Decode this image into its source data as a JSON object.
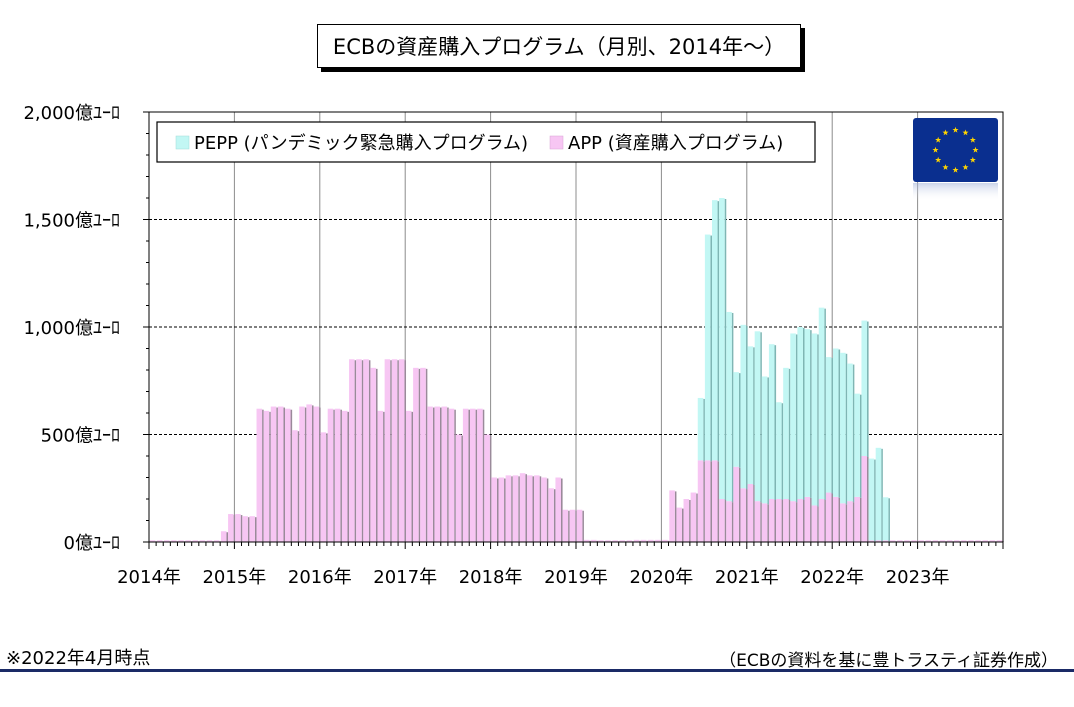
{
  "title": "ECBの資産購入プログラム（月別、2014年～）",
  "footnote": "※2022年4月時点",
  "source": "（ECBの資料を基に豊トラスティ証券作成）",
  "chart_data": {
    "type": "bar",
    "stacked": true,
    "title": "ECBの資産購入プログラム（月別、2014年～）",
    "ylim": [
      0,
      2000
    ],
    "yticks": [
      0,
      500,
      1000,
      1500,
      2000
    ],
    "ytick_labels": [
      "0億ﾕｰﾛ",
      "500億ﾕｰﾛ",
      "1,000億ﾕｰﾛ",
      "1,500億ﾕｰﾛ",
      "2,000億ﾕｰﾛ"
    ],
    "xtick_labels": [
      "2014年",
      "2015年",
      "2016年",
      "2017年",
      "2018年",
      "2019年",
      "2020年",
      "2021年",
      "2022年",
      "2023年"
    ],
    "x_start": "2014-01",
    "months_total": 120,
    "grid": "dashed horizontal at 500/1000/1500, vertical at year starts",
    "legend_position": "top-left",
    "flag_icon": "eu-flag-icon",
    "series": [
      {
        "name": "APP (資産購入プログラム)",
        "color": "#f7c6f3",
        "values": [
          8,
          8,
          8,
          8,
          8,
          8,
          8,
          8,
          8,
          8,
          50,
          130,
          130,
          120,
          120,
          620,
          610,
          630,
          630,
          620,
          520,
          630,
          640,
          630,
          510,
          620,
          620,
          610,
          850,
          850,
          850,
          810,
          610,
          850,
          850,
          850,
          610,
          810,
          810,
          630,
          630,
          630,
          620,
          500,
          620,
          620,
          620,
          500,
          300,
          300,
          310,
          310,
          320,
          310,
          310,
          300,
          250,
          300,
          150,
          150,
          150,
          10,
          10,
          8,
          8,
          8,
          8,
          8,
          10,
          10,
          10,
          10,
          10,
          240,
          160,
          200,
          230,
          380,
          380,
          380,
          200,
          190,
          350,
          250,
          270,
          190,
          180,
          200,
          200,
          200,
          190,
          200,
          210,
          170,
          200,
          230,
          210,
          180,
          190,
          210,
          400,
          8,
          8,
          8,
          8,
          8,
          8,
          8,
          8,
          8,
          8,
          8,
          8,
          8,
          8,
          8,
          8,
          8,
          8,
          8
        ]
      },
      {
        "name": "PEPP (パンデミック緊急購入プログラム)",
        "color": "#c2f7f4",
        "values": [
          0,
          0,
          0,
          0,
          0,
          0,
          0,
          0,
          0,
          0,
          0,
          0,
          0,
          0,
          0,
          0,
          0,
          0,
          0,
          0,
          0,
          0,
          0,
          0,
          0,
          0,
          0,
          0,
          0,
          0,
          0,
          0,
          0,
          0,
          0,
          0,
          0,
          0,
          0,
          0,
          0,
          0,
          0,
          0,
          0,
          0,
          0,
          0,
          0,
          0,
          0,
          0,
          0,
          0,
          0,
          0,
          0,
          0,
          0,
          0,
          0,
          0,
          0,
          0,
          0,
          0,
          0,
          0,
          0,
          0,
          0,
          0,
          0,
          0,
          0,
          0,
          0,
          290,
          1050,
          1210,
          1400,
          880,
          440,
          760,
          640,
          790,
          590,
          720,
          450,
          610,
          780,
          800,
          780,
          800,
          890,
          630,
          690,
          700,
          640,
          480,
          630,
          380,
          430,
          200,
          0,
          0,
          0,
          0,
          0,
          0,
          0,
          0,
          0,
          0,
          0,
          0,
          0,
          0,
          0,
          0,
          0,
          0,
          0
        ]
      }
    ]
  }
}
